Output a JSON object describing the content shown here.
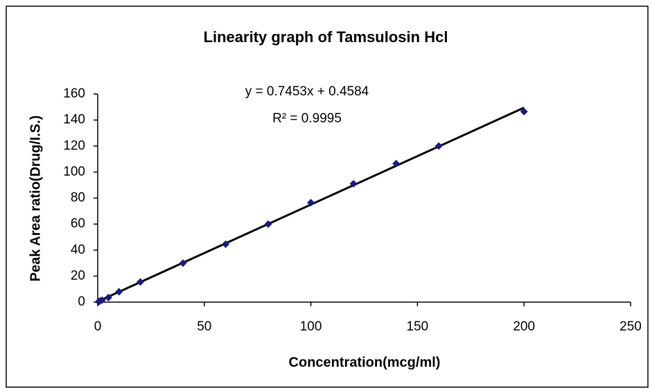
{
  "chart_data": {
    "type": "scatter",
    "title": "Linearity graph of Tamsulosin Hcl",
    "x_label": "Concentration(mcg/ml)",
    "y_label": "Peak Area ratio(Drug/I.S.)",
    "x": [
      0.5,
      1,
      2,
      5,
      10,
      20,
      40,
      60,
      80,
      100,
      120,
      140,
      160,
      200
    ],
    "values": [
      0.4,
      0.8,
      1.5,
      3.5,
      8,
      15.5,
      30,
      44.5,
      60,
      76.5,
      91,
      106.5,
      120,
      146.5
    ],
    "color": "#1a1a80",
    "trendline": {
      "slope": 0.7453,
      "intercept": 0.4584,
      "color": "#000000",
      "equation": "y = 0.7453x + 0.4584",
      "r_squared": "R² = 0.9995"
    },
    "xlim": [
      0,
      250
    ],
    "xticks": [
      0,
      50,
      100,
      150,
      200,
      250
    ],
    "ylim": [
      0,
      160
    ],
    "yticks": [
      0,
      20,
      40,
      60,
      80,
      100,
      120,
      140,
      160
    ]
  }
}
